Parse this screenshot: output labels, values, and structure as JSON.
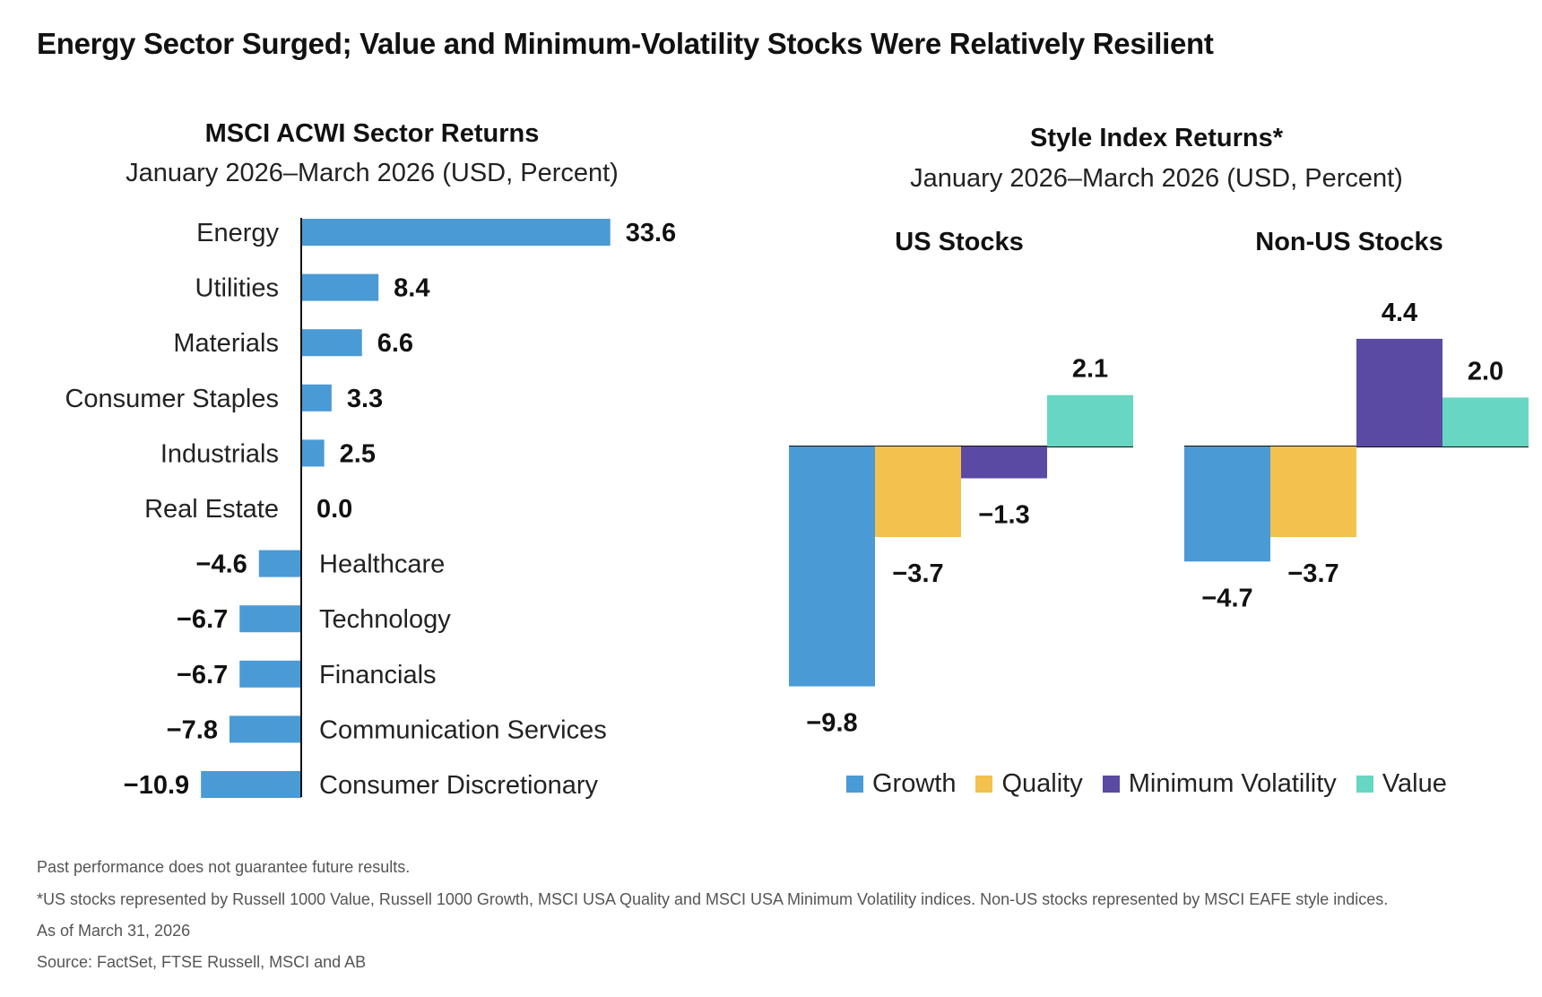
{
  "title": "Energy Sector Surged; Value and Minimum-Volatility Stocks Were Relatively Resilient",
  "colors": {
    "growth": "#4a9ad5",
    "quality": "#f2c14e",
    "minvol": "#5b4aa3",
    "value": "#67d6c2",
    "axis": "#111111"
  },
  "chart_data": [
    {
      "type": "bar",
      "orientation": "horizontal",
      "title": "MSCI ACWI Sector Returns",
      "subtitle": "January 2026–March 2026 (USD, Percent)",
      "categories": [
        "Energy",
        "Utilities",
        "Materials",
        "Consumer Staples",
        "Industrials",
        "Real Estate",
        "Healthcare",
        "Technology",
        "Financials",
        "Communication Services",
        "Consumer Discretionary"
      ],
      "values": [
        33.6,
        8.4,
        6.6,
        3.3,
        2.5,
        0.0,
        -4.6,
        -6.7,
        -6.7,
        -7.8,
        -10.9
      ],
      "value_labels": [
        "33.6",
        "8.4",
        "6.6",
        "3.3",
        "2.5",
        "0.0",
        "−4.6",
        "−6.7",
        "−6.7",
        "−7.8",
        "−10.9"
      ]
    },
    {
      "type": "bar",
      "title": "Style Index Returns*",
      "subtitle": "January 2026–March 2026 (USD, Percent)",
      "categories": [
        "US Stocks",
        "Non-US Stocks"
      ],
      "series": [
        {
          "name": "Growth",
          "color": "#4a9ad5",
          "values": [
            -9.8,
            -4.7
          ],
          "labels": [
            "−9.8",
            "−4.7"
          ]
        },
        {
          "name": "Quality",
          "color": "#f2c14e",
          "values": [
            -3.7,
            -3.7
          ],
          "labels": [
            "−3.7",
            "−3.7"
          ]
        },
        {
          "name": "Minimum Volatility",
          "color": "#5b4aa3",
          "values": [
            -1.3,
            4.4
          ],
          "labels": [
            "−1.3",
            "4.4"
          ]
        },
        {
          "name": "Value",
          "color": "#67d6c2",
          "values": [
            2.1,
            2.0
          ],
          "labels": [
            "2.1",
            "2.0"
          ]
        }
      ],
      "legend_position": "bottom"
    }
  ],
  "footnotes": [
    "Past performance does not guarantee future results.",
    "*US stocks represented by Russell 1000 Value, Russell 1000 Growth, MSCI USA Quality and MSCI USA Minimum Volatility indices. Non-US stocks represented by MSCI EAFE style indices.",
    "As of March 31, 2026",
    "Source: FactSet, FTSE Russell, MSCI and AB"
  ]
}
